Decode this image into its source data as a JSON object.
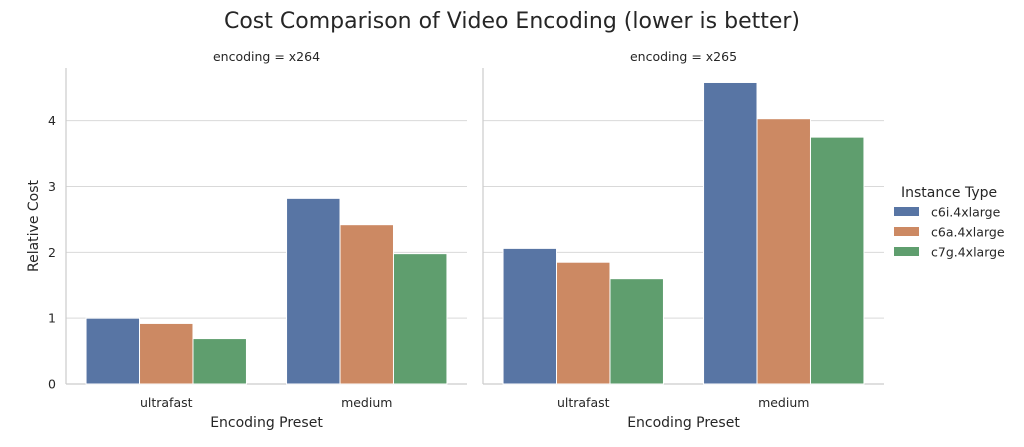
{
  "chart_data": {
    "type": "bar",
    "title": "Cost Comparison of Video Encoding (lower is better)",
    "ylabel": "Relative Cost",
    "xlabel": "Encoding Preset",
    "ylim": [
      0,
      4.8
    ],
    "yticks": [
      "0",
      "1",
      "2",
      "3",
      "4"
    ],
    "grid": true,
    "categories": [
      "ultrafast",
      "medium"
    ],
    "legend": {
      "title": "Instance Type",
      "placement": "right"
    },
    "colors": [
      "#5875a4",
      "#cc8963",
      "#5f9e6e"
    ],
    "panels": [
      {
        "title": "encoding = x264",
        "series": [
          {
            "name": "c6i.4xlarge",
            "values": [
              1.0,
              2.82
            ]
          },
          {
            "name": "c6a.4xlarge",
            "values": [
              0.92,
              2.42
            ]
          },
          {
            "name": "c7g.4xlarge",
            "values": [
              0.69,
              1.98
            ]
          }
        ]
      },
      {
        "title": "encoding = x265",
        "series": [
          {
            "name": "c6i.4xlarge",
            "values": [
              2.06,
              4.58
            ]
          },
          {
            "name": "c6a.4xlarge",
            "values": [
              1.85,
              4.03
            ]
          },
          {
            "name": "c7g.4xlarge",
            "values": [
              1.6,
              3.75
            ]
          }
        ]
      }
    ]
  }
}
